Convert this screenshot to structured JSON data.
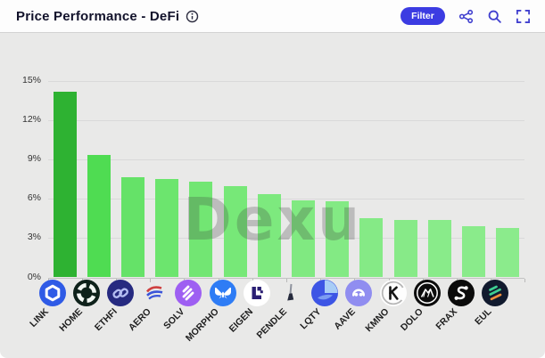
{
  "header": {
    "title": "Price Performance - DeFi",
    "info_icon": "info-circle",
    "filter_label": "Filter",
    "toolbar_icons": [
      "share-icon",
      "search-icon",
      "fullscreen-icon"
    ],
    "accent_color": "#3c3ce2"
  },
  "watermark": "Dexu",
  "chart_data": {
    "type": "bar",
    "title": "Price Performance - DeFi",
    "xlabel": "",
    "ylabel": "",
    "ylim": [
      0,
      15
    ],
    "grid": true,
    "legend": "none",
    "ytick_labels": [
      "0%",
      "3%",
      "6%",
      "9%",
      "12%",
      "15%"
    ],
    "categories": [
      "LINK",
      "HOME",
      "ETHFI",
      "AERO",
      "SOLV",
      "MORPHO",
      "EIGEN",
      "PENDLE",
      "LQTY",
      "AAVE",
      "KMNO",
      "DOLO",
      "FRAX",
      "EUL"
    ],
    "values": [
      14.2,
      9.4,
      7.7,
      7.5,
      7.3,
      7.0,
      6.4,
      5.9,
      5.8,
      4.5,
      4.4,
      4.4,
      3.9,
      3.8
    ],
    "unit": "%",
    "bar_colors": [
      "#2eb232",
      "#4fdc52",
      "#65e268",
      "#6ce56e",
      "#72e673",
      "#77e878",
      "#7de97e",
      "#80e981",
      "#83ea84",
      "#85ea86",
      "#87ea88",
      "#89eb8a",
      "#8aeb8b",
      "#8beb8c"
    ],
    "icons": [
      "chainlink-hexagon",
      "home-reticle",
      "etherfi-chain",
      "aerodrome-wing",
      "solv-stripes",
      "morpho-butterfly",
      "eigen-blocks",
      "pendle-pin",
      "lqty-pie",
      "aave-ghost",
      "kamino-k",
      "dolomite-peaks",
      "frax-nodes",
      "euler-stripes"
    ]
  }
}
